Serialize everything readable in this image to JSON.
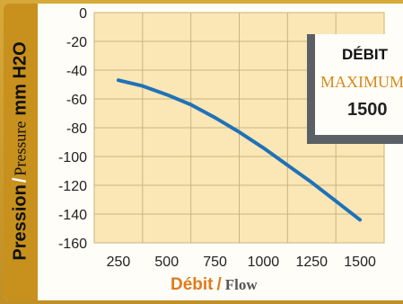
{
  "chart_data": {
    "type": "line",
    "ylabel": {
      "fr": "Pression",
      "sep": "/",
      "en": "Pressure",
      "unit": "mm H2O"
    },
    "xlabel": {
      "fr": "Débit",
      "sep": "/",
      "en": "Flow"
    },
    "x_ticks": [
      "250",
      "500",
      "750",
      "1000",
      "1250",
      "1500"
    ],
    "y_ticks": [
      "0",
      "-20",
      "-40",
      "-60",
      "-80",
      "-100",
      "-120",
      "-140",
      "-160"
    ],
    "xlim": [
      125,
      1625
    ],
    "ylim": [
      -160,
      0
    ],
    "grid": true,
    "series": [
      {
        "color": "#1f72b8",
        "x": [
          250,
          375,
          500,
          625,
          750,
          875,
          1000,
          1125,
          1250,
          1375,
          1500
        ],
        "y": [
          -47,
          -51,
          -57,
          -64,
          -73,
          -83,
          -94,
          -106,
          -118,
          -131,
          -144
        ]
      }
    ],
    "annotation": {
      "line1": "DÉBIT",
      "line2": "MAXIMUM",
      "line3": "1500"
    }
  },
  "colors": {
    "plot_bg": "#fbe7b6",
    "grid": "#c9b47e",
    "accent": "#e07a1a",
    "frame": "#c8901d"
  }
}
